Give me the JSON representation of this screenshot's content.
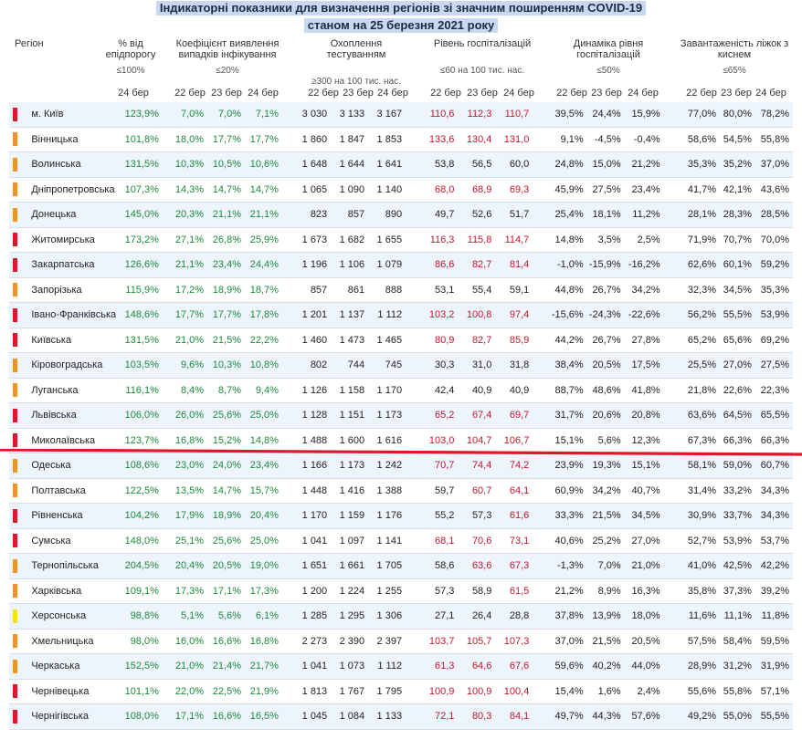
{
  "title": {
    "line1": "Індикаторні показники для визначення регіонів зі значним поширенням COVID-19",
    "line2": "станом на 25 березня 2021 року"
  },
  "headers": {
    "region": "Регіон",
    "pct_threshold": "% від епідпорогу",
    "pct_threshold_t": "≤100%",
    "detection": "Коефіцієнт виявлення випадків інфікування",
    "detection_t": "≤20%",
    "testing": "Охоплення тестуванням",
    "testing_t": "≥300 на 100 тис. нас.",
    "hosp": "Рівень госпіталізацій",
    "hosp_t": "≤60 на 100 тис. нас.",
    "dyn": "Динаміка рівня госпіталізацій",
    "dyn_t": "≤50%",
    "beds": "Завантаженість ліжок з киснем",
    "beds_t": "≤65%"
  },
  "dates": {
    "d24": "24 бер",
    "d22": "22 бер",
    "d23": "23 бер"
  },
  "colors": {
    "red": "#e0162b",
    "orange": "#f5931f",
    "yellow": "#f6e21a",
    "green": "#1c8a3c",
    "crimson": "#c0172e"
  },
  "rows": [
    {
      "name": "м. Київ",
      "level": "red",
      "pct": "123,9%",
      "det": [
        "7,0%",
        "7,0%",
        "7,1%"
      ],
      "test": [
        "3 030",
        "3 133",
        "3 167"
      ],
      "hosp": [
        "110,6",
        "112,3",
        "110,7"
      ],
      "dyn": [
        "39,5%",
        "24,4%",
        "15,9%"
      ],
      "beds": [
        "77,0%",
        "80,0%",
        "78,2%"
      ]
    },
    {
      "name": "Вінницька",
      "level": "orange",
      "pct": "101,8%",
      "det": [
        "18,0%",
        "17,7%",
        "17,7%"
      ],
      "test": [
        "1 860",
        "1 847",
        "1 853"
      ],
      "hosp": [
        "133,6",
        "130,4",
        "131,0"
      ],
      "dyn": [
        "9,1%",
        "-4,5%",
        "-0,4%"
      ],
      "beds": [
        "58,6%",
        "54,5%",
        "55,8%"
      ]
    },
    {
      "name": "Волинська",
      "level": "orange",
      "pct": "131,5%",
      "det": [
        "10,3%",
        "10,5%",
        "10,6%"
      ],
      "test": [
        "1 648",
        "1 644",
        "1 641"
      ],
      "hosp": [
        "53,8",
        "56,5",
        "60,0"
      ],
      "dyn": [
        "24,8%",
        "15,0%",
        "21,2%"
      ],
      "beds": [
        "35,3%",
        "35,2%",
        "37,0%"
      ]
    },
    {
      "name": "Дніпропетровська",
      "level": "orange",
      "pct": "107,3%",
      "det": [
        "14,3%",
        "14,7%",
        "14,7%"
      ],
      "test": [
        "1 065",
        "1 090",
        "1 140"
      ],
      "hosp": [
        "68,0",
        "68,9",
        "69,3"
      ],
      "dyn": [
        "45,9%",
        "27,5%",
        "23,4%"
      ],
      "beds": [
        "41,7%",
        "42,1%",
        "43,6%"
      ]
    },
    {
      "name": "Донецька",
      "level": "orange",
      "pct": "145,0%",
      "det": [
        "20,3%",
        "21,1%",
        "21,1%"
      ],
      "test": [
        "823",
        "857",
        "890"
      ],
      "hosp": [
        "49,7",
        "52,6",
        "51,7"
      ],
      "dyn": [
        "25,4%",
        "18,1%",
        "11,2%"
      ],
      "beds": [
        "28,1%",
        "28,3%",
        "28,5%"
      ]
    },
    {
      "name": "Житомирська",
      "level": "red",
      "pct": "173,2%",
      "det": [
        "27,1%",
        "26,8%",
        "25,9%"
      ],
      "test": [
        "1 673",
        "1 682",
        "1 655"
      ],
      "hosp": [
        "116,3",
        "115,8",
        "114,7"
      ],
      "dyn": [
        "14,8%",
        "3,5%",
        "2,5%"
      ],
      "beds": [
        "71,9%",
        "70,7%",
        "70,0%"
      ]
    },
    {
      "name": "Закарпатська",
      "level": "red",
      "pct": "126,6%",
      "det": [
        "21,1%",
        "23,4%",
        "24,4%"
      ],
      "test": [
        "1 196",
        "1 106",
        "1 079"
      ],
      "hosp": [
        "86,6",
        "82,7",
        "81,4"
      ],
      "dyn": [
        "-1,0%",
        "-15,9%",
        "-16,2%"
      ],
      "beds": [
        "62,6%",
        "60,1%",
        "59,2%"
      ]
    },
    {
      "name": "Запорізька",
      "level": "orange",
      "pct": "115,9%",
      "det": [
        "17,2%",
        "18,9%",
        "18,7%"
      ],
      "test": [
        "857",
        "861",
        "888"
      ],
      "hosp": [
        "53,1",
        "55,4",
        "59,1"
      ],
      "dyn": [
        "44,8%",
        "26,7%",
        "34,2%"
      ],
      "beds": [
        "32,3%",
        "34,5%",
        "35,3%"
      ]
    },
    {
      "name": "Івано-Франківська",
      "level": "red",
      "pct": "148,6%",
      "det": [
        "17,7%",
        "17,7%",
        "17,8%"
      ],
      "test": [
        "1 201",
        "1 137",
        "1 112"
      ],
      "hosp": [
        "103,2",
        "100,8",
        "97,4"
      ],
      "dyn": [
        "-15,6%",
        "-24,3%",
        "-22,6%"
      ],
      "beds": [
        "56,2%",
        "55,5%",
        "53,9%"
      ]
    },
    {
      "name": "Київська",
      "level": "red",
      "pct": "131,5%",
      "det": [
        "21,0%",
        "21,5%",
        "22,2%"
      ],
      "test": [
        "1 460",
        "1 473",
        "1 465"
      ],
      "hosp": [
        "80,9",
        "82,7",
        "85,9"
      ],
      "dyn": [
        "44,2%",
        "26,7%",
        "27,8%"
      ],
      "beds": [
        "65,2%",
        "65,6%",
        "69,2%"
      ]
    },
    {
      "name": "Кіровоградська",
      "level": "orange",
      "pct": "103,5%",
      "det": [
        "9,6%",
        "10,3%",
        "10,8%"
      ],
      "test": [
        "802",
        "744",
        "745"
      ],
      "hosp": [
        "30,3",
        "31,0",
        "31,8"
      ],
      "dyn": [
        "38,4%",
        "20,5%",
        "17,5%"
      ],
      "beds": [
        "25,5%",
        "27,0%",
        "27,5%"
      ]
    },
    {
      "name": "Луганська",
      "level": "orange",
      "pct": "116,1%",
      "det": [
        "8,4%",
        "8,7%",
        "9,4%"
      ],
      "test": [
        "1 126",
        "1 158",
        "1 170"
      ],
      "hosp": [
        "42,4",
        "40,9",
        "40,9"
      ],
      "dyn": [
        "88,7%",
        "48,6%",
        "41,8%"
      ],
      "beds": [
        "21,8%",
        "22,6%",
        "22,3%"
      ]
    },
    {
      "name": "Львівська",
      "level": "red",
      "pct": "106,0%",
      "det": [
        "26,0%",
        "25,6%",
        "25,0%"
      ],
      "test": [
        "1 128",
        "1 151",
        "1 173"
      ],
      "hosp": [
        "65,2",
        "67,4",
        "69,7"
      ],
      "dyn": [
        "31,7%",
        "20,6%",
        "20,8%"
      ],
      "beds": [
        "63,6%",
        "64,5%",
        "65,5%"
      ]
    },
    {
      "name": "Миколаївська",
      "level": "red",
      "pct": "123,7%",
      "det": [
        "16,8%",
        "15,2%",
        "14,8%"
      ],
      "test": [
        "1 488",
        "1 600",
        "1 616"
      ],
      "hosp": [
        "103,0",
        "104,7",
        "106,7"
      ],
      "dyn": [
        "15,1%",
        "5,6%",
        "12,3%"
      ],
      "beds": [
        "67,3%",
        "66,3%",
        "66,3%"
      ]
    },
    {
      "name": "Одеська",
      "level": "orange",
      "pct": "108,6%",
      "det": [
        "23,0%",
        "24,0%",
        "23,4%"
      ],
      "test": [
        "1 166",
        "1 173",
        "1 242"
      ],
      "hosp": [
        "70,7",
        "74,4",
        "74,2"
      ],
      "dyn": [
        "23,9%",
        "19,3%",
        "15,1%"
      ],
      "beds": [
        "58,1%",
        "59,0%",
        "60,7%"
      ]
    },
    {
      "name": "Полтавська",
      "level": "orange",
      "pct": "122,5%",
      "det": [
        "13,5%",
        "14,7%",
        "15,7%"
      ],
      "test": [
        "1 448",
        "1 416",
        "1 388"
      ],
      "hosp": [
        "59,7",
        "60,7",
        "64,1"
      ],
      "dyn": [
        "60,9%",
        "34,2%",
        "40,7%"
      ],
      "beds": [
        "31,4%",
        "33,2%",
        "34,3%"
      ]
    },
    {
      "name": "Рівненська",
      "level": "red",
      "pct": "104,2%",
      "det": [
        "17,9%",
        "18,9%",
        "20,4%"
      ],
      "test": [
        "1 170",
        "1 159",
        "1 176"
      ],
      "hosp": [
        "55,2",
        "57,3",
        "61,6"
      ],
      "dyn": [
        "33,3%",
        "21,5%",
        "34,5%"
      ],
      "beds": [
        "30,9%",
        "33,7%",
        "34,3%"
      ]
    },
    {
      "name": "Сумська",
      "level": "red",
      "pct": "148,0%",
      "det": [
        "25,1%",
        "25,6%",
        "25,0%"
      ],
      "test": [
        "1 041",
        "1 097",
        "1 141"
      ],
      "hosp": [
        "68,1",
        "70,6",
        "73,1"
      ],
      "dyn": [
        "40,6%",
        "25,2%",
        "27,0%"
      ],
      "beds": [
        "52,7%",
        "53,9%",
        "53,7%"
      ]
    },
    {
      "name": "Тернопільська",
      "level": "orange",
      "pct": "204,5%",
      "det": [
        "20,4%",
        "20,5%",
        "19,0%"
      ],
      "test": [
        "1 651",
        "1 661",
        "1 705"
      ],
      "hosp": [
        "58,6",
        "63,6",
        "67,3"
      ],
      "dyn": [
        "-1,3%",
        "7,0%",
        "21,0%"
      ],
      "beds": [
        "41,0%",
        "42,5%",
        "42,2%"
      ]
    },
    {
      "name": "Харківська",
      "level": "orange",
      "pct": "109,1%",
      "det": [
        "17,3%",
        "17,1%",
        "17,3%"
      ],
      "test": [
        "1 200",
        "1 224",
        "1 255"
      ],
      "hosp": [
        "57,3",
        "58,9",
        "61,5"
      ],
      "dyn": [
        "21,2%",
        "8,9%",
        "16,3%"
      ],
      "beds": [
        "35,8%",
        "37,3%",
        "39,2%"
      ]
    },
    {
      "name": "Херсонська",
      "level": "yellow",
      "pct": "98,8%",
      "det": [
        "5,1%",
        "5,6%",
        "6,1%"
      ],
      "test": [
        "1 285",
        "1 295",
        "1 306"
      ],
      "hosp": [
        "27,1",
        "26,4",
        "28,8"
      ],
      "dyn": [
        "37,8%",
        "13,9%",
        "18,0%"
      ],
      "beds": [
        "11,6%",
        "11,1%",
        "11,8%"
      ]
    },
    {
      "name": "Хмельницька",
      "level": "orange",
      "pct": "98,0%",
      "det": [
        "16,0%",
        "16,6%",
        "16,8%"
      ],
      "test": [
        "2 273",
        "2 390",
        "2 397"
      ],
      "hosp": [
        "103,7",
        "105,7",
        "107,3"
      ],
      "dyn": [
        "37,0%",
        "21,5%",
        "20,5%"
      ],
      "beds": [
        "57,5%",
        "58,4%",
        "59,5%"
      ]
    },
    {
      "name": "Черкаська",
      "level": "orange",
      "pct": "152,5%",
      "det": [
        "21,0%",
        "21,4%",
        "21,7%"
      ],
      "test": [
        "1 041",
        "1 073",
        "1 112"
      ],
      "hosp": [
        "61,3",
        "64,6",
        "67,6"
      ],
      "dyn": [
        "59,6%",
        "40,2%",
        "44,0%"
      ],
      "beds": [
        "28,9%",
        "31,2%",
        "31,9%"
      ]
    },
    {
      "name": "Чернівецька",
      "level": "red",
      "pct": "101,1%",
      "det": [
        "22,0%",
        "22,5%",
        "21,9%"
      ],
      "test": [
        "1 813",
        "1 767",
        "1 795"
      ],
      "hosp": [
        "100,9",
        "100,9",
        "100,4"
      ],
      "dyn": [
        "15,4%",
        "1,6%",
        "2,4%"
      ],
      "beds": [
        "55,6%",
        "55,8%",
        "57,1%"
      ]
    },
    {
      "name": "Чернігівська",
      "level": "red",
      "pct": "108,0%",
      "det": [
        "17,1%",
        "16,6%",
        "16,5%"
      ],
      "test": [
        "1 045",
        "1 084",
        "1 133"
      ],
      "hosp": [
        "72,1",
        "80,3",
        "84,1"
      ],
      "dyn": [
        "49,7%",
        "44,3%",
        "57,6%"
      ],
      "beds": [
        "49,2%",
        "55,0%",
        "55,5%"
      ]
    }
  ]
}
